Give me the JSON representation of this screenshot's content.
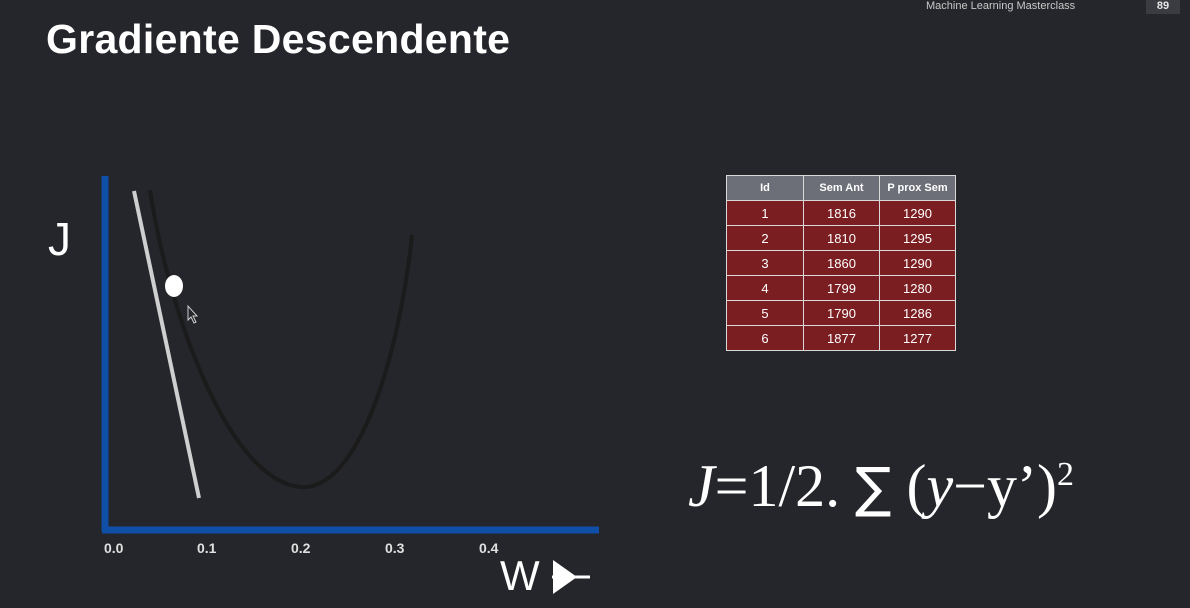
{
  "header": {
    "course_name": "Machine Learning Masterclass",
    "page_number": "89"
  },
  "slide": {
    "title": "Gradiente Descendente"
  },
  "graph": {
    "y_label": "J",
    "x_label": "W",
    "x_ticks": [
      "0.0",
      "0.1",
      "0.2",
      "0.3",
      "0.4"
    ],
    "axis_color": "#0f4fa8",
    "curve_color": "#1b1b1b",
    "tangent_color": "#cfcfcf",
    "point_color": "#ffffff"
  },
  "table": {
    "headers": [
      "Id",
      "Sem Ant",
      "P prox Sem"
    ],
    "rows": [
      [
        "1",
        "1816",
        "1290"
      ],
      [
        "2",
        "1810",
        "1295"
      ],
      [
        "3",
        "1860",
        "1290"
      ],
      [
        "4",
        "1799",
        "1280"
      ],
      [
        "5",
        "1790",
        "1286"
      ],
      [
        "6",
        "1877",
        "1277"
      ]
    ],
    "header_color": "#6c6f78",
    "row_color": "#7b1e22"
  },
  "formula": {
    "lhs": "J",
    "eq_coef": "=1/2. ",
    "sigma": "∑",
    "paren_open": " (",
    "y": "y",
    "minus": "−",
    "y_prime": "y’",
    "paren_close": ")",
    "exponent": "2"
  }
}
